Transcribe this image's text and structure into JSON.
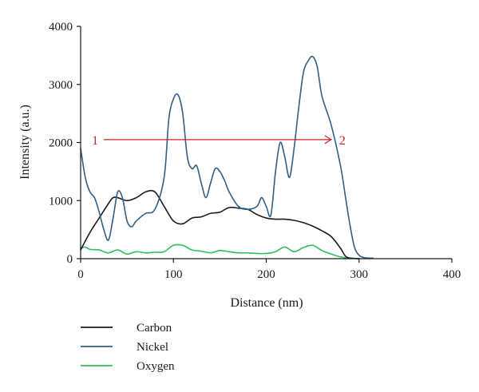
{
  "chart_data": {
    "type": "line",
    "xlabel": "Distance (nm)",
    "ylabel": "Intensity (a.u.)",
    "xlim": [
      0,
      400
    ],
    "ylim": [
      0,
      4000
    ],
    "x_ticks": [
      0,
      100,
      200,
      300,
      400
    ],
    "y_ticks": [
      0,
      1000,
      2000,
      3000,
      4000
    ],
    "grid": false,
    "legend_position": "bottom-left",
    "series": [
      {
        "name": "Carbon",
        "color": "#1a1a1a",
        "x": [
          0,
          10,
          20,
          30,
          35,
          40,
          50,
          60,
          70,
          80,
          90,
          100,
          110,
          120,
          130,
          140,
          150,
          160,
          170,
          180,
          190,
          200,
          210,
          220,
          230,
          240,
          250,
          260,
          270,
          280,
          285,
          290,
          300
        ],
        "y": [
          150,
          450,
          700,
          950,
          1050,
          1050,
          1000,
          1050,
          1150,
          1150,
          900,
          650,
          600,
          700,
          720,
          780,
          800,
          880,
          870,
          850,
          760,
          700,
          680,
          680,
          660,
          620,
          560,
          480,
          380,
          180,
          50,
          10,
          0
        ]
      },
      {
        "name": "Nickel",
        "color": "#2f5f86",
        "x": [
          0,
          5,
          10,
          15,
          20,
          25,
          30,
          35,
          40,
          45,
          50,
          55,
          60,
          70,
          80,
          90,
          95,
          100,
          105,
          110,
          115,
          120,
          125,
          130,
          135,
          140,
          145,
          150,
          155,
          160,
          170,
          180,
          190,
          195,
          200,
          205,
          210,
          215,
          220,
          225,
          230,
          235,
          240,
          245,
          250,
          255,
          260,
          270,
          280,
          285,
          290,
          295,
          300,
          305,
          310,
          315
        ],
        "y": [
          1900,
          1400,
          1150,
          1050,
          800,
          500,
          320,
          700,
          1150,
          1050,
          650,
          550,
          650,
          780,
          850,
          1400,
          2400,
          2750,
          2820,
          2500,
          1750,
          1550,
          1600,
          1300,
          1050,
          1300,
          1550,
          1500,
          1350,
          1150,
          900,
          850,
          900,
          1050,
          900,
          750,
          1500,
          2000,
          1750,
          1400,
          1900,
          2600,
          3200,
          3400,
          3480,
          3300,
          2800,
          2300,
          1600,
          1100,
          600,
          200,
          60,
          20,
          10,
          10
        ]
      },
      {
        "name": "Oxygen",
        "color": "#2fbf5a",
        "x": [
          0,
          5,
          10,
          20,
          30,
          40,
          50,
          60,
          70,
          80,
          90,
          100,
          110,
          120,
          130,
          140,
          150,
          160,
          170,
          180,
          190,
          200,
          210,
          220,
          230,
          240,
          250,
          260,
          270,
          280,
          290,
          300
        ],
        "y": [
          180,
          200,
          160,
          150,
          100,
          150,
          80,
          120,
          100,
          110,
          120,
          230,
          230,
          150,
          130,
          100,
          140,
          120,
          100,
          100,
          90,
          90,
          120,
          200,
          120,
          190,
          230,
          140,
          80,
          30,
          10,
          0
        ]
      }
    ],
    "annotations": {
      "arrow_start_label": "1",
      "arrow_end_label": "2",
      "arrow_color": "#cc2222",
      "arrow_y": 2050,
      "arrow_x_from": 25,
      "arrow_x_to": 270
    }
  }
}
